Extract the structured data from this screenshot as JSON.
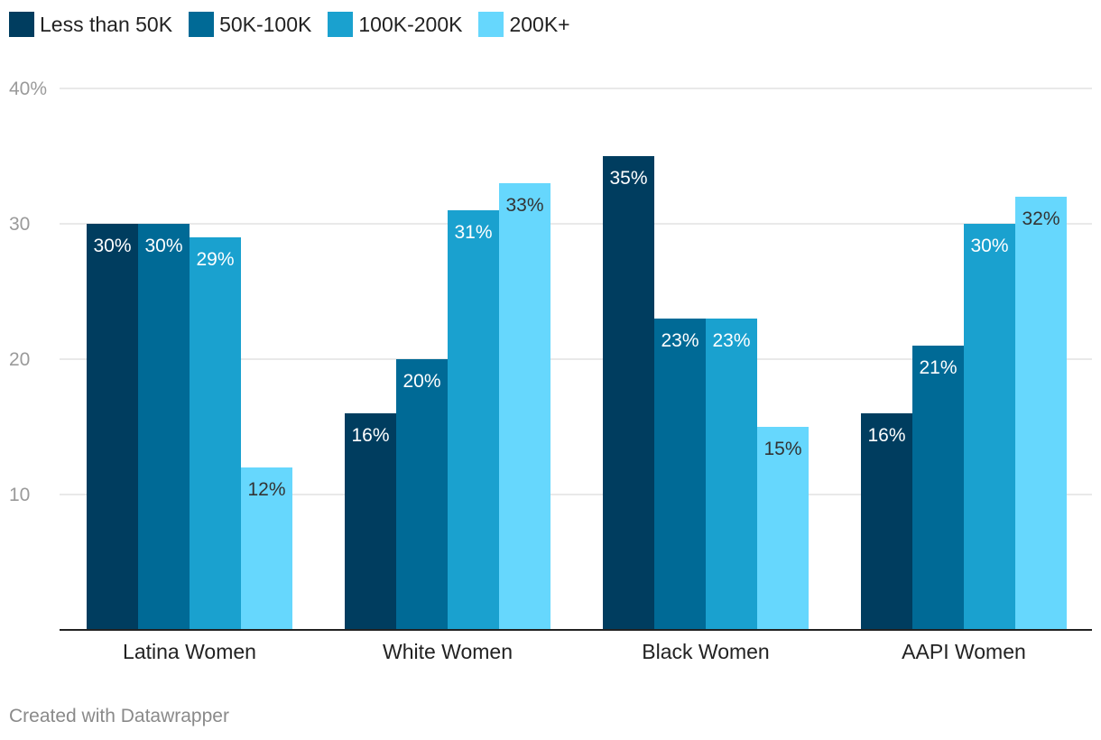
{
  "chart_data": {
    "type": "bar",
    "title": "",
    "xlabel": "",
    "ylabel": "",
    "categories": [
      "Latina Women",
      "White Women",
      "Black Women",
      "AAPI Women"
    ],
    "series": [
      {
        "name": "Less than 50K",
        "color": "#003d5f",
        "values": [
          30,
          16,
          35,
          16
        ],
        "labels": [
          "30%",
          "16%",
          "35%",
          "16%"
        ]
      },
      {
        "name": "50K-100K",
        "color": "#006a96",
        "values": [
          30,
          20,
          23,
          21
        ],
        "labels": [
          "30%",
          "20%",
          "23%",
          "21%"
        ]
      },
      {
        "name": "100K-200K",
        "color": "#1aa1cf",
        "values": [
          29,
          31,
          23,
          30
        ],
        "labels": [
          "29%",
          "31%",
          "23%",
          "30%"
        ]
      },
      {
        "name": "200K+",
        "color": "#66d7fd",
        "values": [
          12,
          33,
          15,
          32
        ],
        "labels": [
          "12%",
          "33%",
          "15%",
          "32%"
        ]
      }
    ],
    "ylim": [
      0,
      40
    ],
    "yticks": [
      {
        "value": 10,
        "label": "10"
      },
      {
        "value": 20,
        "label": "20"
      },
      {
        "value": 30,
        "label": "30"
      },
      {
        "value": 40,
        "label": "40%"
      }
    ],
    "grid": true,
    "legend_position": "top-left"
  },
  "footer": {
    "credit": "Created with Datawrapper"
  }
}
